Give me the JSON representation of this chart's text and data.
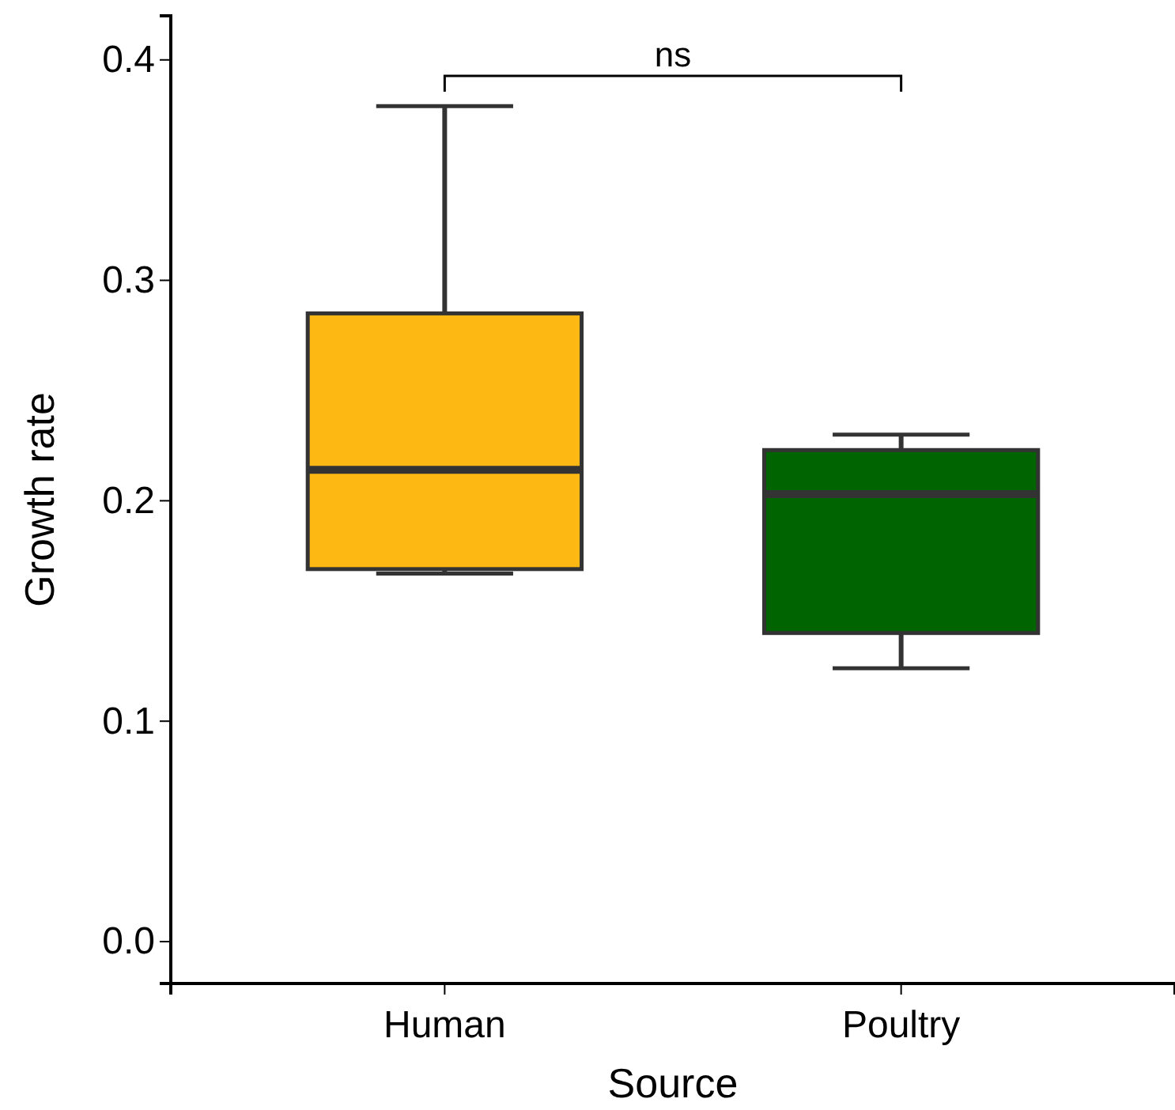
{
  "chart_data": {
    "type": "box",
    "xlabel": "Source",
    "ylabel": "Growth rate",
    "categories": [
      "Human",
      "Poultry"
    ],
    "colors": [
      "#feb813",
      "#006400"
    ],
    "boxes": [
      {
        "low": 0.167,
        "q1": 0.169,
        "median": 0.214,
        "q3": 0.285,
        "high": 0.379
      },
      {
        "low": 0.124,
        "q1": 0.14,
        "median": 0.203,
        "q3": 0.223,
        "high": 0.23
      }
    ],
    "ylim": [
      -0.019,
      0.42
    ],
    "yticks": [
      {
        "value": 0,
        "label": "0.0"
      },
      {
        "value": 0.1,
        "label": "0.1"
      },
      {
        "value": 0.2,
        "label": "0.2"
      },
      {
        "value": 0.3,
        "label": "0.3"
      },
      {
        "value": 0.4,
        "label": "0.4"
      }
    ],
    "annotations": [
      "ns"
    ]
  }
}
